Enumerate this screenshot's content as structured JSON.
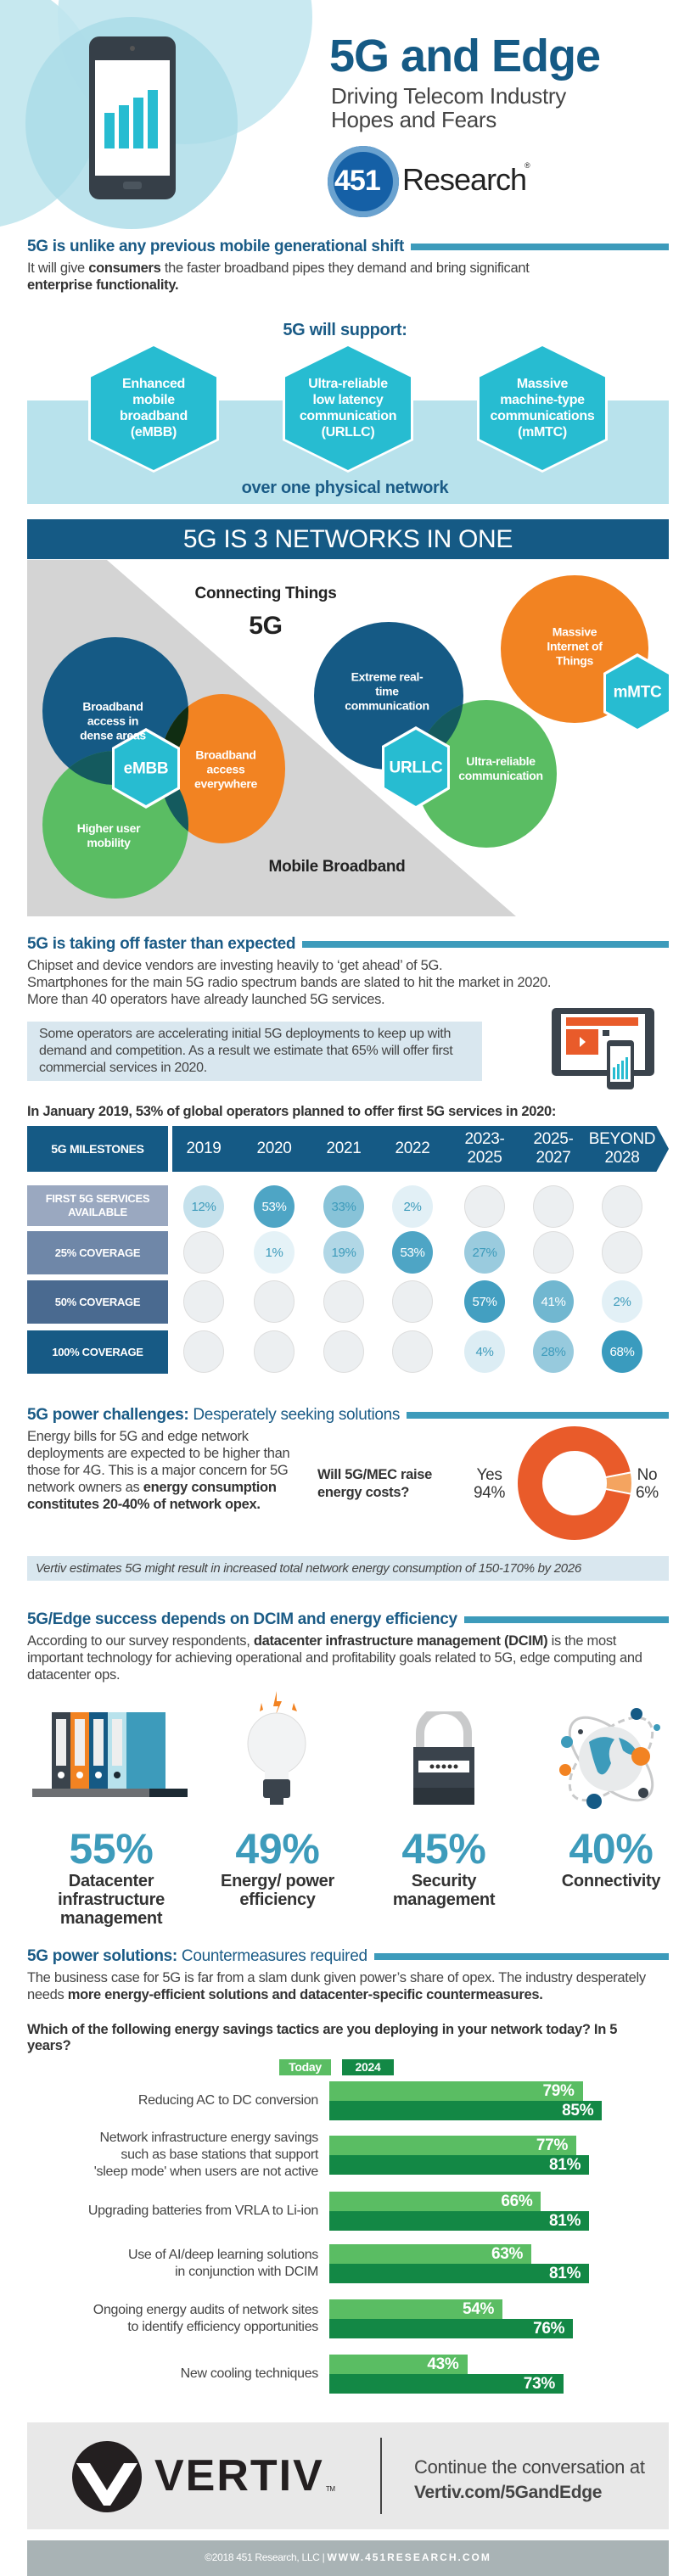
{
  "header": {
    "title": "5G and Edge",
    "subtitle_line1": "Driving Telecom Industry",
    "subtitle_line2": "Hopes and Fears",
    "logo_number": "451",
    "logo_word": "Research",
    "logo_mark": "®"
  },
  "shift": {
    "heading": "5G is unlike any previous mobile generational shift",
    "body_1": "It will give ",
    "body_bold_1": "consumers",
    "body_2": " the faster broadband pipes they demand and bring significant",
    "body_bold_2": "enterprise functionality.",
    "support_title": "5G will support:",
    "hexagons": [
      "Enhanced mobile broadband (eMBB)",
      "Ultra-reliable low latency communication (URLLC)",
      "Massive machine-type communications (mMTC)"
    ],
    "footer": "over one physical network"
  },
  "networks": {
    "banner": "5G IS 3 NETWORKS IN ONE",
    "connecting_things": "Connecting Things",
    "center_5g": "5G",
    "mobile_broadband": "Mobile Broadband",
    "circles": {
      "dense": "Broadband access in dense areas",
      "everywhere": "Broadband access everywhere",
      "mobility": "Higher user mobility",
      "realtime": "Extreme real-time communication",
      "reliable": "Ultra-reliable communication",
      "iot": "Massive Internet of Things"
    },
    "hex_embb": "eMBB",
    "hex_urllc": "URLLC",
    "hex_mmtc": "mMTC"
  },
  "takeoff": {
    "heading": "5G is taking off faster than expected",
    "body_lines": [
      "Chipset and device vendors are investing heavily to ‘get ahead’ of 5G.",
      "Smartphones for the main 5G radio spectrum bands are slated to hit the market in 2020.",
      "More than 40 operators have already launched 5G services."
    ],
    "callout": "Some operators are accelerating initial 5G deployments to keep up with demand and competition. As a result we estimate that 65% will offer first commercial services in 2020.",
    "table_title": "In January 2019, 53% of global operators planned to offer first 5G services in 2020:"
  },
  "chart_data": [
    {
      "type": "table",
      "header_label": "5G MILESTONES",
      "categories": [
        "2019",
        "2020",
        "2021",
        "2022",
        "2023-\n2025",
        "2025-\n2027",
        "BEYOND\n2028"
      ],
      "series": [
        {
          "name": "FIRST 5G SERVICES AVAILABLE",
          "color": "#9aa8c0",
          "values": [
            "12%",
            "53%",
            "33%",
            "2%",
            null,
            null,
            null
          ]
        },
        {
          "name": "25% COVERAGE",
          "color": "#6f87a8",
          "values": [
            null,
            "1%",
            "19%",
            "53%",
            "27%",
            null,
            null
          ]
        },
        {
          "name": "50% COVERAGE",
          "color": "#4a6a90",
          "values": [
            null,
            null,
            null,
            null,
            "57%",
            "41%",
            "2%"
          ]
        },
        {
          "name": "100% COVERAGE",
          "color": "#175a85",
          "values": [
            null,
            null,
            null,
            null,
            "4%",
            "28%",
            "68%"
          ]
        }
      ]
    },
    {
      "type": "pie",
      "title": "Will 5G/MEC raise energy costs?",
      "slices": [
        {
          "name": "Yes",
          "value": 94,
          "label": "94%",
          "color": "#e95b2a"
        },
        {
          "name": "No",
          "value": 6,
          "label": "6%",
          "color": "#f4a460"
        }
      ]
    },
    {
      "type": "bar",
      "title": "Which of the following energy savings tactics are you deploying in your network today? In 5 years?",
      "categories": [
        "Reducing AC to DC conversion",
        "Network infrastructure energy savings such as base stations that support 'sleep mode' when users are not active",
        "Upgrading batteries from VRLA to Li-ion",
        "Use of AI/deep learning solutions in conjunction with DCIM",
        "Ongoing energy audits of network sites to identify efficiency opportunities",
        "New cooling techniques"
      ],
      "category_lines": [
        [
          "Reducing AC to DC conversion"
        ],
        [
          "Network infrastructure energy savings",
          "such as base stations that support",
          "'sleep mode' when users are not active"
        ],
        [
          "Upgrading batteries from VRLA to Li-ion"
        ],
        [
          "Use of AI/deep learning solutions",
          "in conjunction with DCIM"
        ],
        [
          "Ongoing energy audits of network sites",
          "to identify efficiency opportunities"
        ],
        [
          "New cooling techniques"
        ]
      ],
      "series": [
        {
          "name": "Today",
          "color": "#5abd63",
          "values": [
            79,
            77,
            66,
            63,
            54,
            43
          ]
        },
        {
          "name": "2024",
          "color": "#138845",
          "values": [
            85,
            81,
            81,
            81,
            76,
            73
          ]
        }
      ],
      "unit": "%"
    }
  ],
  "power": {
    "heading_bold": "5G power challenges:",
    "heading_rest": " Desperately seeking solutions",
    "body": "Energy bills for 5G and edge network deployments are expected to be higher than those for 4G. This is a major concern for 5G network owners as ",
    "body_bold": "energy consumption constitutes 20-40% of network opex.",
    "question": "Will 5G/MEC raise energy costs?",
    "yes_label": "Yes",
    "yes_value": "94%",
    "no_label": "No",
    "no_value": "6%",
    "note": "Vertiv estimates 5G might result in increased total network energy consumption of 150-170% by 2026"
  },
  "dcim": {
    "heading": "5G/Edge success depends on DCIM and energy efficiency",
    "body_1": "According to our survey respondents, ",
    "body_bold": "datacenter infrastructure management (DCIM)",
    "body_2": " is the most important technology for achieving operational and profitability goals related to 5G, edge computing and datacenter ops.",
    "stats": [
      {
        "value": "55%",
        "label": "Datacenter infrastructure management",
        "icon": "binders-icon"
      },
      {
        "value": "49%",
        "label": "Energy/ power efficiency",
        "icon": "lightbulb-icon"
      },
      {
        "value": "45%",
        "label": "Security management",
        "icon": "padlock-icon"
      },
      {
        "value": "40%",
        "label": "Connectivity",
        "icon": "globe-icon"
      }
    ]
  },
  "solutions": {
    "heading_bold": "5G power solutions:",
    "heading_rest": " Countermeasures required",
    "body_1": "The business case for 5G is far from a slam dunk given power’s share of opex. The industry desperately needs ",
    "body_bold": "more energy-efficient solutions and datacenter-specific countermeasures.",
    "question": "Which of the following energy savings tactics are you deploying in your network today? In 5 years?",
    "legend_today": "Today",
    "legend_2024": "2024"
  },
  "footer": {
    "brand": "VERTIV",
    "tm": "TM",
    "cta": "Continue the conversation at",
    "url": "Vertiv.com/5GandEdge",
    "copyright": "©2018 451 Research, LLC",
    "website": "WWW.451RESEARCH.COM"
  }
}
